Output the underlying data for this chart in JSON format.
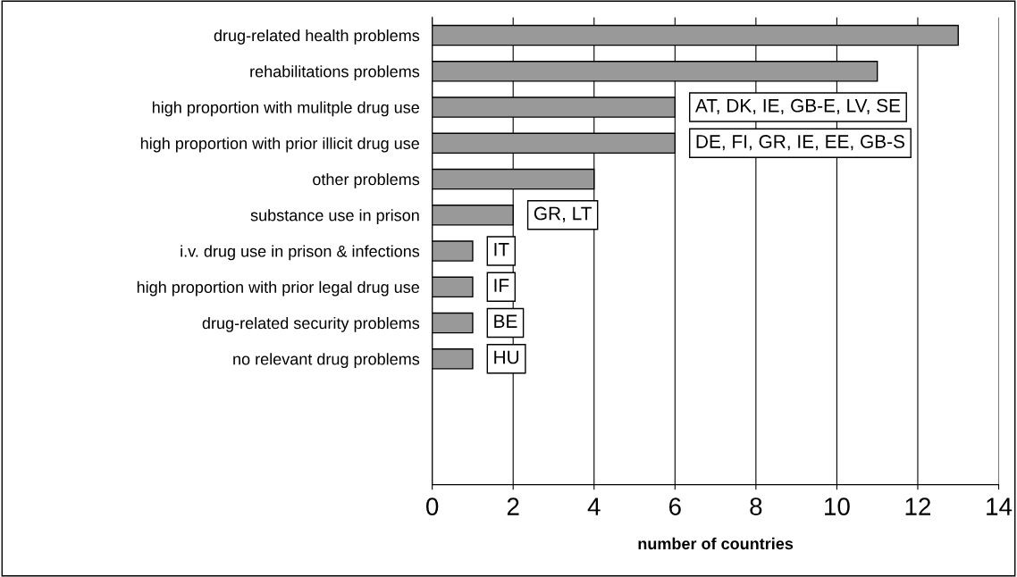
{
  "chart_data": {
    "type": "bar",
    "orientation": "horizontal",
    "xlabel": "number of countries",
    "categories": [
      "drug-related health problems",
      "rehabilitations problems",
      "high proportion with mulitple drug use",
      "high proportion with prior illicit drug use",
      "other problems",
      "substance use in prison",
      "i.v. drug use in prison & infections",
      "high proportion with prior legal drug use",
      "drug-related security problems",
      "no relevant drug problems"
    ],
    "values": [
      13,
      11,
      6,
      6,
      4,
      2,
      1,
      1,
      1,
      1
    ],
    "color": "#999999",
    "xlim": [
      0,
      14
    ],
    "xticks": [
      0,
      2,
      4,
      6,
      8,
      10,
      12,
      14
    ],
    "grid": "x",
    "annotations": [
      {
        "text": "AT, DK, IE, GB-E, LV, SE",
        "x": 6,
        "y": "high proportion with mulitple drug use"
      },
      {
        "text": "DE, FI, GR, IE, EE, GB-S",
        "x": 6,
        "y": "high proportion with prior illicit drug use"
      },
      {
        "text": "GR, LT",
        "x": 2,
        "y": "substance use in prison"
      },
      {
        "text": "IT",
        "x": 1,
        "y": "i.v. drug use in prison & infections"
      },
      {
        "text": "IF",
        "x": 1,
        "y": "high proportion with prior legal drug use"
      },
      {
        "text": "BE",
        "x": 1,
        "y": "drug-related security problems"
      },
      {
        "text": "HU",
        "x": 1,
        "y": "no relevant drug problems"
      }
    ]
  }
}
